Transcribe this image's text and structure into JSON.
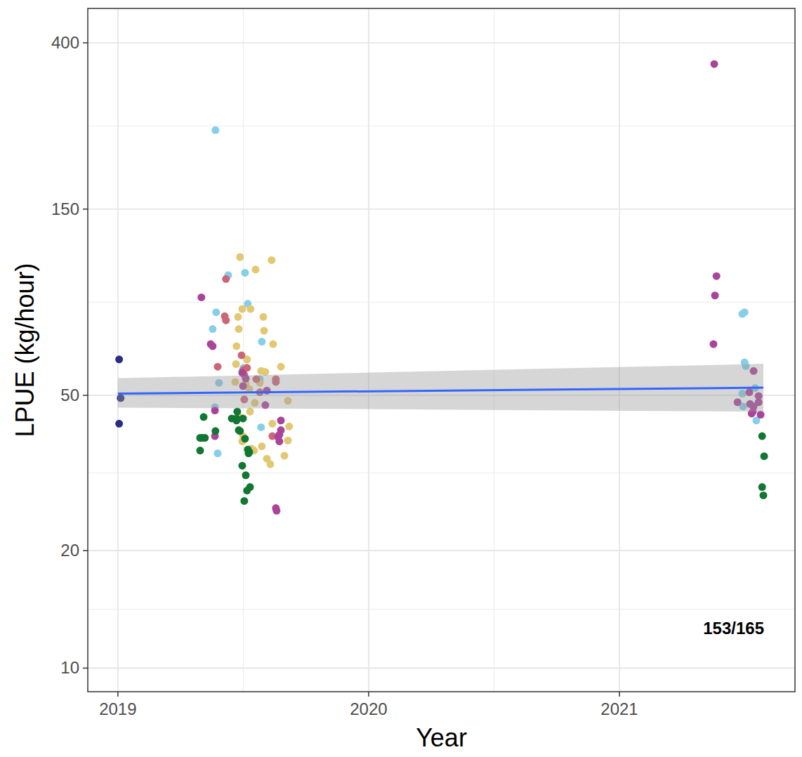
{
  "chart_data": {
    "type": "scatter",
    "x_label": "Year",
    "y_label": "LPUE (kg/hour)",
    "annotations": [
      "153/165"
    ],
    "log": "y",
    "grid": true,
    "xlim": [
      2018.88,
      2021.7
    ],
    "xticks": [
      2019,
      2020,
      2021
    ],
    "ylim": [
      8.7,
      490
    ],
    "yticks": [
      10,
      20,
      50,
      150,
      400
    ],
    "series": [
      {
        "color": "#2b2d84",
        "marker": "circle",
        "x": [
          2019.005,
          2019.011,
          2019.005
        ],
        "values": [
          61.8,
          49.2,
          42.3
        ]
      },
      {
        "color": "#87ceeb",
        "marker": "circle",
        "x": [
          2019.389,
          2019.507,
          2019.392,
          2019.378,
          2019.44,
          2019.518,
          2019.403,
          2019.387,
          2019.398,
          2019.501,
          2019.574,
          2019.566,
          2019.571,
          2019.496,
          2021.49,
          2021.499,
          2021.499,
          2021.504,
          2021.49,
          2021.493,
          2021.541,
          2021.546
        ],
        "values": [
          239,
          103,
          81.6,
          73.9,
          101.6,
          85.8,
          53.8,
          46.6,
          35.5,
          58.8,
          68.6,
          55,
          41.4,
          57.7,
          80.8,
          81.6,
          60.7,
          59.4,
          50.5,
          46.8,
          52.2,
          43.1
        ]
      },
      {
        "color": "#e2c873",
        "marker": "circle",
        "x": [
          2019.487,
          2019.549,
          2019.613,
          2019.529,
          2019.496,
          2019.479,
          2019.482,
          2019.58,
          2019.583,
          2019.619,
          2019.473,
          2019.515,
          2019.471,
          2019.571,
          2019.588,
          2019.65,
          2019.468,
          2019.51,
          2019.566,
          2019.524,
          2019.546,
          2019.527,
          2019.485,
          2019.678,
          2019.616,
          2019.683,
          2019.499,
          2019.496,
          2019.574,
          2019.678,
          2019.543,
          2019.594,
          2019.664,
          2019.608,
          2019.532
        ],
        "values": [
          113,
          105,
          111,
          83.2,
          83.2,
          79.4,
          73.9,
          79.4,
          73.2,
          67.6,
          66.8,
          61.8,
          60.1,
          57.7,
          57.4,
          59.2,
          54.1,
          53.5,
          53.8,
          51.8,
          47.8,
          45.4,
          44.0,
          48.4,
          42.3,
          41.6,
          39.3,
          38.1,
          37.0,
          38.3,
          36.1,
          34.4,
          35.0,
          33.3,
          36.5
        ]
      },
      {
        "color": "#cc6677",
        "marker": "circle",
        "x": [
          2019.431,
          2019.426,
          2019.431,
          2019.398,
          2019.501,
          2019.515,
          2019.504,
          2019.552,
          2019.566,
          2019.63,
          2019.63,
          2019.616,
          2019.504,
          2019.493
        ],
        "values": [
          99.3,
          79.7,
          77.8,
          59.2,
          58.1,
          58.8,
          56.4,
          55.0,
          50.9,
          55.0,
          54.1,
          39.3,
          48.8,
          63.3
        ]
      },
      {
        "color": "#aa4499",
        "marker": "circle",
        "x": [
          2019.333,
          2019.37,
          2019.378,
          2019.387,
          2019.387,
          2019.496,
          2019.499,
          2019.51,
          2019.588,
          2019.594,
          2019.65,
          2019.65,
          2019.639,
          2019.644,
          2019.644,
          2019.63,
          2019.633,
          2021.378,
          2021.387,
          2021.381,
          2021.375,
          2021.535,
          2021.471,
          2021.518,
          2021.521,
          2021.535,
          2021.555,
          2021.555,
          2021.527,
          2021.563,
          2021.532
        ],
        "values": [
          89.1,
          67.6,
          66.8,
          39.3,
          45.7,
          57.1,
          52.8,
          55.2,
          47.2,
          51.4,
          43.1,
          40.7,
          39.1,
          38.1,
          39.6,
          25.7,
          25.3,
          353,
          101,
          90.1,
          67.6,
          57.7,
          48.0,
          50.9,
          47.5,
          46.8,
          49.8,
          48.0,
          44.9,
          44.6,
          45.4
        ]
      },
      {
        "color": "#117733",
        "marker": "circle",
        "x": [
          2019.342,
          2019.328,
          2019.336,
          2019.347,
          2019.328,
          2019.389,
          2019.454,
          2019.473,
          2019.476,
          2019.482,
          2019.473,
          2019.487,
          2019.507,
          2019.499,
          2019.496,
          2019.51,
          2019.504,
          2019.515,
          2019.527,
          2019.518,
          2019.524,
          2019.521,
          2021.569,
          2021.577,
          2021.569,
          2021.574
        ],
        "values": [
          44.0,
          38.9,
          38.9,
          38.9,
          36.1,
          40.5,
          43.6,
          43.6,
          45.4,
          40.7,
          43.1,
          40.5,
          38.7,
          43.6,
          33.0,
          31.2,
          26.8,
          28.5,
          29.1,
          36.3,
          35.8,
          35.5,
          39.3,
          34.9,
          29.1,
          27.7
        ]
      },
      {
        "type": "line",
        "color": "#3366ff",
        "x": [
          2019,
          2021.574
        ],
        "values": [
          50.5,
          52.3
        ],
        "lower": [
          46.5,
          45.4
        ],
        "upper": [
          55.3,
          60.2
        ]
      }
    ]
  }
}
